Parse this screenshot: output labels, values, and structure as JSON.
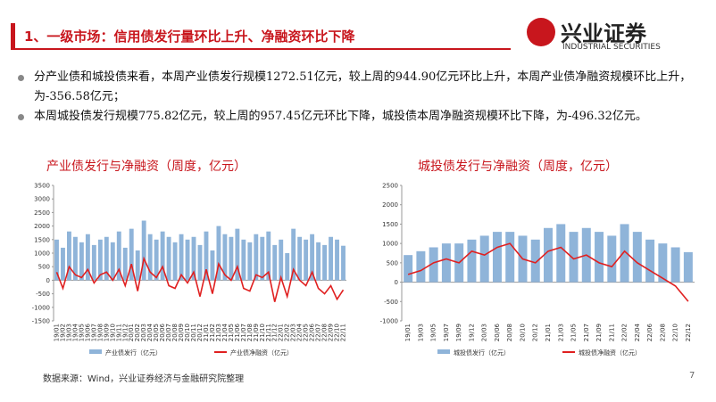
{
  "header": {
    "title": "1、一级市场：信用债发行量环比上升、净融资环比下降"
  },
  "logo": {
    "name": "兴业证券",
    "english": "INDUSTRIAL SECURITIES"
  },
  "bullets": [
    "分产业债和城投债来看，本周产业债发行规模1272.51亿元，较上周的944.90亿元环比上升，本周产业债净融资规模环比上升，为-356.58亿元；",
    "本周城投债发行规模775.82亿元，较上周的957.45亿元环比下降，城投债本周净融资规模环比下降，为-496.32亿元。"
  ],
  "chart_data": [
    {
      "type": "bar-line",
      "title": "产业债发行与净融资（周度，亿元）",
      "categories": [
        "19/01",
        "19/02",
        "19/03",
        "19/04",
        "19/05",
        "19/06",
        "19/07",
        "19/08",
        "19/09",
        "19/10",
        "19/11",
        "19/12",
        "20/01",
        "20/02",
        "20/03",
        "20/04",
        "20/05",
        "20/06",
        "20/07",
        "20/08",
        "20/09",
        "20/10",
        "20/11",
        "20/12",
        "21/01",
        "21/02",
        "21/03",
        "21/04",
        "21/05",
        "21/06",
        "21/07",
        "21/08",
        "21/09",
        "21/10",
        "21/11",
        "21/12",
        "22/01",
        "22/02",
        "22/03",
        "22/04",
        "22/05",
        "22/06",
        "22/07",
        "22/08",
        "22/09",
        "22/10",
        "22/11"
      ],
      "series": [
        {
          "name": "产业债发行（亿元）",
          "kind": "bar",
          "color": "#8fb4d9",
          "values": [
            1500,
            1200,
            1800,
            1600,
            1400,
            1700,
            1300,
            1500,
            1600,
            1400,
            1800,
            1200,
            1900,
            1100,
            2200,
            1700,
            1500,
            1800,
            1600,
            1400,
            1700,
            1500,
            1600,
            1300,
            1800,
            1100,
            2000,
            1700,
            1600,
            1900,
            1500,
            1400,
            1700,
            1600,
            1800,
            1300,
            1500,
            1000,
            1900,
            1600,
            1500,
            1700,
            1400,
            1300,
            1600,
            1500,
            1273
          ]
        },
        {
          "name": "产业债净融资（亿元）",
          "kind": "line",
          "color": "#e02020",
          "values": [
            300,
            -300,
            500,
            200,
            100,
            400,
            -100,
            200,
            300,
            0,
            400,
            -200,
            600,
            -400,
            800,
            300,
            100,
            500,
            -200,
            -300,
            200,
            -100,
            300,
            -600,
            400,
            -500,
            600,
            200,
            0,
            500,
            -300,
            -400,
            200,
            100,
            300,
            -800,
            100,
            -600,
            400,
            0,
            -200,
            300,
            -300,
            -500,
            -200,
            -700,
            -357
          ]
        }
      ],
      "ylim": [
        -1500,
        3500
      ],
      "yticks": [
        -1500,
        -1000,
        -500,
        0,
        500,
        1000,
        1500,
        2000,
        2500,
        3000,
        3500
      ]
    },
    {
      "type": "bar-line",
      "title": "城投债发行与净融资（周度，亿元）",
      "categories": [
        "19/01",
        "19/03",
        "19/05",
        "19/07",
        "19/09",
        "19/12",
        "20/03",
        "20/06",
        "20/08",
        "20/10",
        "20/12",
        "21/01",
        "21/03",
        "21/05",
        "21/07",
        "21/09",
        "21/11",
        "22/02",
        "22/04",
        "22/06",
        "22/08",
        "22/10",
        "22/12"
      ],
      "series": [
        {
          "name": "城投债发行（亿元）",
          "kind": "bar",
          "color": "#8fb4d9",
          "values": [
            700,
            800,
            900,
            1000,
            1000,
            1100,
            1200,
            1300,
            1300,
            1200,
            1100,
            1400,
            1500,
            1300,
            1400,
            1300,
            1200,
            1500,
            1300,
            1100,
            1000,
            900,
            776
          ]
        },
        {
          "name": "城投债净融资（亿元）",
          "kind": "line",
          "color": "#e02020",
          "values": [
            200,
            300,
            500,
            600,
            500,
            800,
            700,
            900,
            1000,
            600,
            500,
            800,
            900,
            600,
            700,
            500,
            400,
            800,
            500,
            300,
            100,
            -100,
            -496
          ]
        }
      ],
      "ylim": [
        -1000,
        2500
      ],
      "yticks": [
        -1000,
        -500,
        0,
        500,
        1000,
        1500,
        2000,
        2500
      ]
    }
  ],
  "source": "数据来源：Wind，兴业证券经济与金融研究院整理",
  "page": "7"
}
